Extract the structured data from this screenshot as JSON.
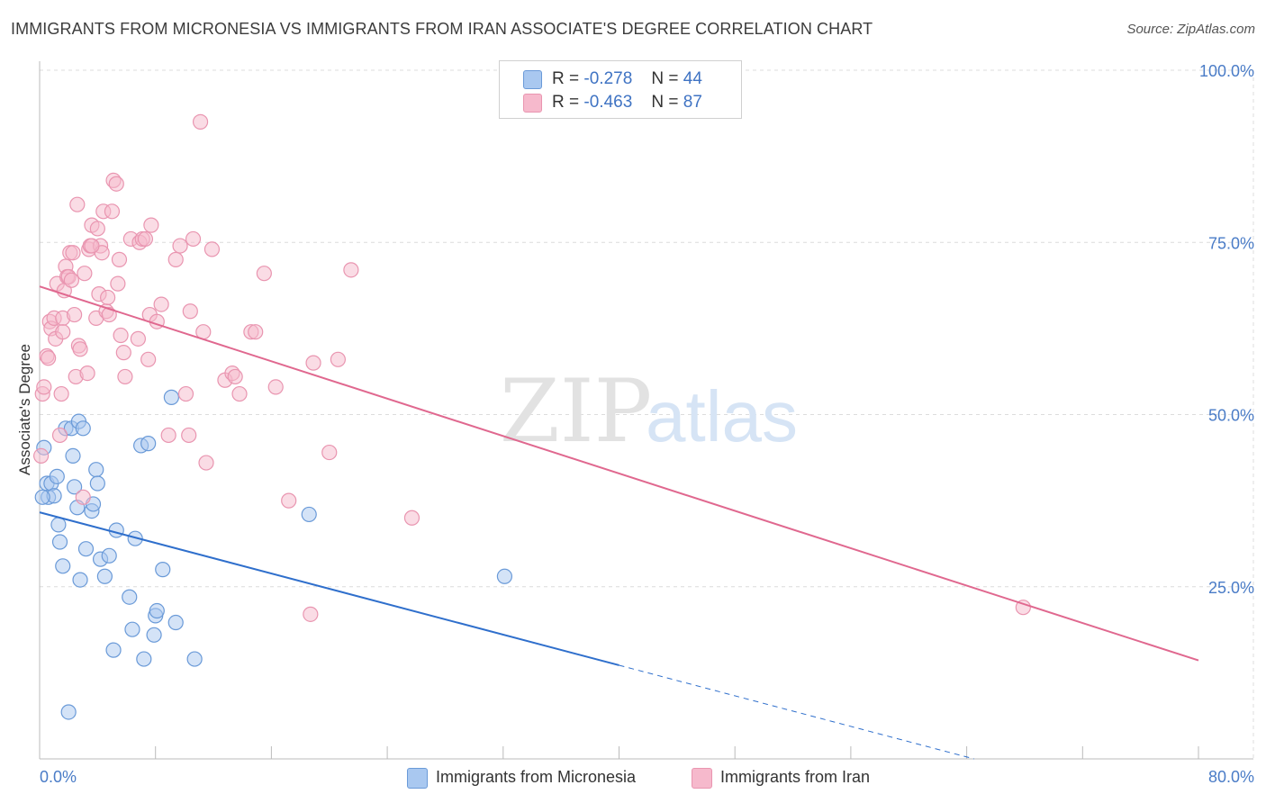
{
  "header": {
    "title": "IMMIGRANTS FROM MICRONESIA VS IMMIGRANTS FROM IRAN ASSOCIATE'S DEGREE CORRELATION CHART",
    "source": "Source: ZipAtlas.com"
  },
  "legend": {
    "r_label": "R =",
    "n_label": "N =",
    "rows": [
      {
        "r": "-0.278",
        "n": "44"
      },
      {
        "r": "-0.463",
        "n": "87"
      }
    ]
  },
  "watermark": {
    "zip": "ZIP",
    "atlas": "atlas"
  },
  "colors": {
    "blue_fill": "#a9c8f0",
    "blue_stroke": "#6a9ad8",
    "blue_line": "#2f6fcc",
    "pink_fill": "#f6b9cc",
    "pink_stroke": "#e995b0",
    "pink_line": "#e0688f",
    "tick_text": "#4a7cc7",
    "grid": "#dcdcdc"
  },
  "chart_data": {
    "type": "scatter",
    "title": "IMMIGRANTS FROM MICRONESIA VS IMMIGRANTS FROM IRAN ASSOCIATE'S DEGREE CORRELATION CHART",
    "xlabel": "",
    "ylabel": "Associate's Degree",
    "xlim": [
      0,
      80
    ],
    "ylim": [
      0,
      100
    ],
    "x_tick_labels": [
      "0.0%",
      "80.0%"
    ],
    "y_ticks": [
      25,
      50,
      75,
      100
    ],
    "y_tick_labels": [
      "25.0%",
      "50.0%",
      "75.0%",
      "100.0%"
    ],
    "grid": true,
    "legend_position": "bottom",
    "series": [
      {
        "name": "Immigrants from Micronesia",
        "color": "#a9c8f0",
        "points": [
          [
            0.3,
            45.2
          ],
          [
            0.5,
            40
          ],
          [
            0.6,
            38
          ],
          [
            0.8,
            40
          ],
          [
            1.0,
            38.2
          ],
          [
            1.2,
            41
          ],
          [
            1.3,
            34
          ],
          [
            1.4,
            31.5
          ],
          [
            1.6,
            28
          ],
          [
            1.8,
            48
          ],
          [
            2.0,
            6.8
          ],
          [
            2.2,
            48
          ],
          [
            2.3,
            44
          ],
          [
            2.4,
            39.5
          ],
          [
            2.6,
            36.5
          ],
          [
            2.7,
            49
          ],
          [
            2.8,
            26
          ],
          [
            3.0,
            48
          ],
          [
            3.2,
            30.5
          ],
          [
            3.6,
            36
          ],
          [
            3.7,
            37
          ],
          [
            3.9,
            42
          ],
          [
            4.0,
            40
          ],
          [
            4.2,
            29
          ],
          [
            4.5,
            26.5
          ],
          [
            4.8,
            29.5
          ],
          [
            5.1,
            15.8
          ],
          [
            5.3,
            33.2
          ],
          [
            6.2,
            23.5
          ],
          [
            6.4,
            18.8
          ],
          [
            6.6,
            32
          ],
          [
            7.0,
            45.5
          ],
          [
            7.2,
            14.5
          ],
          [
            7.5,
            45.8
          ],
          [
            7.9,
            18
          ],
          [
            8.0,
            20.8
          ],
          [
            8.1,
            21.5
          ],
          [
            8.5,
            27.5
          ],
          [
            9.1,
            52.5
          ],
          [
            9.4,
            19.8
          ],
          [
            10.7,
            14.5
          ],
          [
            18.6,
            35.5
          ],
          [
            32.1,
            26.5
          ],
          [
            0.2,
            38
          ]
        ]
      },
      {
        "name": "Immigrants from Iran",
        "color": "#f6b9cc",
        "points": [
          [
            0.1,
            44
          ],
          [
            0.2,
            53
          ],
          [
            0.3,
            54
          ],
          [
            0.5,
            58.5
          ],
          [
            0.6,
            58.2
          ],
          [
            0.7,
            63.5
          ],
          [
            0.8,
            62.5
          ],
          [
            1.0,
            64
          ],
          [
            1.1,
            61
          ],
          [
            1.2,
            69
          ],
          [
            1.4,
            47
          ],
          [
            1.5,
            53
          ],
          [
            1.6,
            64
          ],
          [
            1.7,
            68
          ],
          [
            1.8,
            71.5
          ],
          [
            1.9,
            70
          ],
          [
            2.0,
            70
          ],
          [
            2.1,
            73.5
          ],
          [
            2.3,
            73.5
          ],
          [
            2.4,
            64.5
          ],
          [
            2.5,
            55.5
          ],
          [
            2.6,
            80.5
          ],
          [
            2.7,
            60
          ],
          [
            2.8,
            59.5
          ],
          [
            3.0,
            38
          ],
          [
            3.1,
            70.5
          ],
          [
            3.3,
            56
          ],
          [
            3.4,
            74
          ],
          [
            3.5,
            74.5
          ],
          [
            3.6,
            77.5
          ],
          [
            3.9,
            64
          ],
          [
            4.0,
            77
          ],
          [
            4.1,
            67.5
          ],
          [
            4.2,
            74.5
          ],
          [
            4.3,
            73.5
          ],
          [
            4.4,
            79.5
          ],
          [
            4.6,
            65
          ],
          [
            4.7,
            67
          ],
          [
            4.8,
            64.5
          ],
          [
            5.0,
            79.5
          ],
          [
            5.1,
            84
          ],
          [
            5.3,
            83.5
          ],
          [
            5.4,
            69
          ],
          [
            5.5,
            72.5
          ],
          [
            5.6,
            61.5
          ],
          [
            5.8,
            59
          ],
          [
            5.9,
            55.5
          ],
          [
            6.3,
            75.5
          ],
          [
            6.8,
            61
          ],
          [
            6.9,
            75
          ],
          [
            7.1,
            75.5
          ],
          [
            7.3,
            75.5
          ],
          [
            7.5,
            58
          ],
          [
            7.6,
            64.5
          ],
          [
            7.7,
            77.5
          ],
          [
            8.1,
            63.5
          ],
          [
            8.4,
            66
          ],
          [
            8.9,
            47
          ],
          [
            9.4,
            72.5
          ],
          [
            9.7,
            74.5
          ],
          [
            10.1,
            53
          ],
          [
            10.4,
            65
          ],
          [
            10.6,
            75.5
          ],
          [
            11.3,
            62
          ],
          [
            11.5,
            43
          ],
          [
            11.9,
            74
          ],
          [
            12.8,
            55
          ],
          [
            13.3,
            56
          ],
          [
            13.5,
            55.5
          ],
          [
            13.8,
            53
          ],
          [
            14.6,
            62
          ],
          [
            14.9,
            62
          ],
          [
            15.5,
            70.5
          ],
          [
            16.3,
            54
          ],
          [
            17.2,
            37.5
          ],
          [
            18.7,
            21
          ],
          [
            18.9,
            57.5
          ],
          [
            20.0,
            44.5
          ],
          [
            20.6,
            58
          ],
          [
            21.5,
            71
          ],
          [
            25.7,
            35
          ],
          [
            67.9,
            22
          ],
          [
            11.1,
            92.5
          ],
          [
            10.3,
            47
          ],
          [
            1.6,
            62
          ],
          [
            2.2,
            69.5
          ],
          [
            3.6,
            74.5
          ]
        ]
      }
    ],
    "trendlines": [
      {
        "series": "Immigrants from Micronesia",
        "x_start": 0,
        "y_start": 35.8,
        "x_end": 40,
        "y_end": 13.6,
        "dashed_to_x": 80,
        "dashed_to_y": -8.6
      },
      {
        "series": "Immigrants from Iran",
        "x_start": 0,
        "y_start": 68.6,
        "x_end": 80,
        "y_end": 14.3
      }
    ]
  }
}
